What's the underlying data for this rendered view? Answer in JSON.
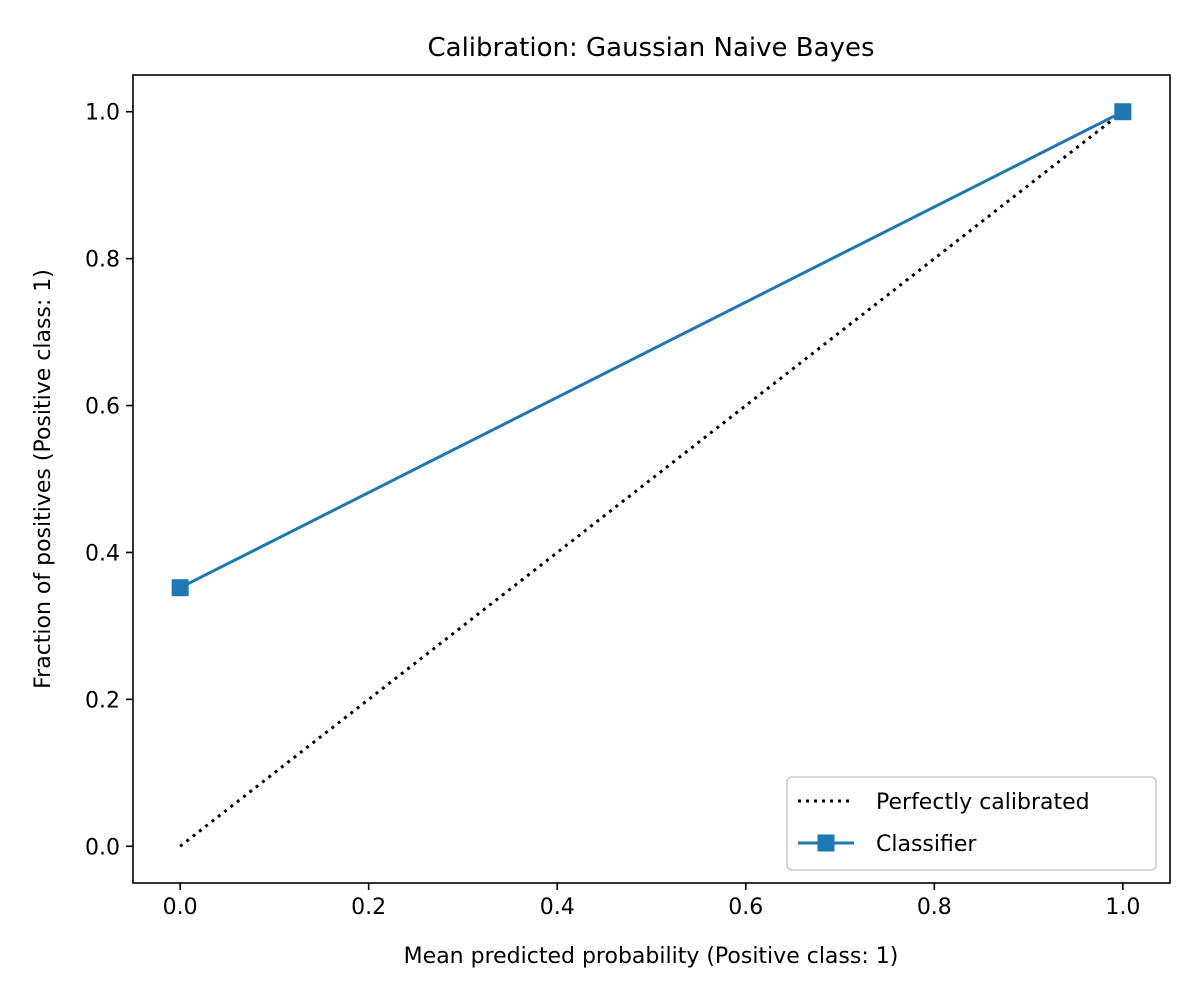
{
  "chart_data": {
    "type": "line",
    "title": "Calibration: Gaussian Naive Bayes",
    "xlabel": "Mean predicted probability (Positive class: 1)",
    "ylabel": "Fraction of positives (Positive class: 1)",
    "xlim": [
      -0.05,
      1.05
    ],
    "ylim": [
      -0.05,
      1.05
    ],
    "x_ticks": [
      0.0,
      0.2,
      0.4,
      0.6,
      0.8,
      1.0
    ],
    "x_tick_labels": [
      "0.0",
      "0.2",
      "0.4",
      "0.6",
      "0.8",
      "1.0"
    ],
    "y_ticks": [
      0.0,
      0.2,
      0.4,
      0.6,
      0.8,
      1.0
    ],
    "y_tick_labels": [
      "0.0",
      "0.2",
      "0.4",
      "0.6",
      "0.8",
      "1.0"
    ],
    "grid": false,
    "legend_position": "lower-right",
    "series": [
      {
        "name": "Perfectly calibrated",
        "style": "dotted",
        "color": "#000000",
        "marker": "none",
        "x": [
          0.0,
          1.0
        ],
        "y": [
          0.0,
          1.0
        ]
      },
      {
        "name": "Classifier",
        "style": "solid",
        "color": "#1f77b4",
        "marker": "square",
        "x": [
          0.0,
          1.0
        ],
        "y": [
          0.352,
          1.0
        ]
      }
    ]
  }
}
